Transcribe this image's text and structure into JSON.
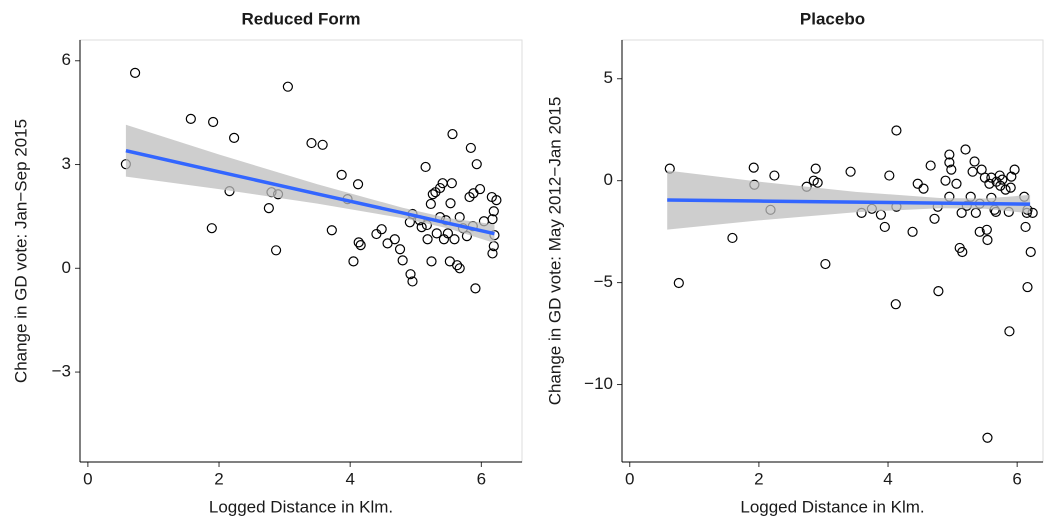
{
  "chart_data": [
    {
      "type": "scatter",
      "title": "Reduced Form",
      "x_label": "Logged Distance  in Klm.",
      "y_label": "Change in GD vote: Jan−Sep 2015",
      "xlim": [
        -0.12,
        6.62
      ],
      "ylim": [
        -5.6,
        6.6
      ],
      "xticks": [
        0,
        2,
        4,
        6
      ],
      "yticks": [
        {
          "value": -3,
          "label": "−3"
        },
        0,
        3,
        6
      ],
      "point_color": "#000000",
      "fit_color": "#3366ff",
      "band_color": "#bdbdbd",
      "points": {
        "x": [
          0.58,
          0.72,
          1.57,
          1.91,
          1.89,
          2.23,
          2.16,
          2.76,
          2.8,
          2.9,
          2.87,
          3.05,
          3.41,
          3.58,
          3.72,
          3.87,
          3.96,
          4.12,
          4.05,
          4.13,
          4.16,
          4.4,
          4.48,
          4.57,
          4.68,
          4.76,
          4.8,
          4.91,
          4.95,
          4.92,
          4.95,
          5.06,
          5.15,
          5.18,
          5.23,
          5.26,
          5.3,
          5.37,
          5.41,
          5.32,
          5.24,
          5.49,
          5.53,
          5.56,
          5.55,
          5.59,
          5.63,
          5.52,
          5.67,
          5.67,
          5.72,
          5.78,
          5.82,
          5.88,
          5.84,
          5.93,
          5.87,
          5.91,
          5.98,
          6.04,
          6.16,
          6.19,
          6.23,
          6.17,
          6.2,
          6.17,
          6.19,
          5.43,
          5.46,
          5.37,
          5.09,
          5.17
        ],
        "y": [
          3.01,
          5.65,
          4.32,
          4.23,
          1.16,
          3.77,
          2.23,
          1.74,
          2.2,
          2.14,
          0.52,
          5.25,
          3.62,
          3.57,
          1.1,
          2.7,
          2.0,
          2.43,
          0.2,
          0.75,
          0.67,
          0.99,
          1.13,
          0.72,
          0.84,
          0.55,
          0.23,
          1.33,
          1.57,
          -0.17,
          -0.38,
          1.39,
          2.93,
          0.84,
          1.86,
          2.14,
          2.2,
          2.32,
          2.46,
          1.01,
          0.2,
          1.01,
          1.88,
          3.88,
          2.46,
          0.84,
          0.09,
          0.2,
          0,
          1.48,
          1.16,
          0.93,
          2.06,
          2.17,
          3.48,
          3.01,
          1.22,
          -0.58,
          2.29,
          1.36,
          2.06,
          1.65,
          1.97,
          1.42,
          0.96,
          0.43,
          0.64,
          0.84,
          1.39,
          1.48,
          1.19,
          1.25
        ]
      },
      "fit": {
        "x": [
          0.58,
          2,
          3.5,
          4.8,
          5.5,
          6.2
        ],
        "y": [
          3.4,
          2.79,
          2.15,
          1.6,
          1.3,
          1.0
        ],
        "lower": [
          2.65,
          2.29,
          1.87,
          1.45,
          1.15,
          0.73
        ],
        "upper": [
          4.15,
          3.29,
          2.43,
          1.75,
          1.45,
          1.27
        ]
      }
    },
    {
      "type": "scatter",
      "title": "Placebo",
      "x_label": "Logged Distance  in Klm.",
      "y_label": "Change in GD vote: May 2012−Jan 2015",
      "xlim": [
        -0.12,
        6.4
      ],
      "ylim": [
        -13.8,
        6.9
      ],
      "xticks": [
        0,
        2,
        4,
        6
      ],
      "yticks": [
        {
          "value": -10,
          "label": "−10"
        },
        {
          "value": -5,
          "label": "−5"
        },
        0,
        5
      ],
      "point_color": "#000000",
      "fit_color": "#3366ff",
      "band_color": "#bdbdbd",
      "points": {
        "x": [
          0.62,
          0.76,
          1.92,
          1.93,
          2.24,
          2.18,
          1.59,
          2.74,
          2.85,
          2.88,
          2.91,
          3.03,
          3.42,
          3.59,
          3.75,
          3.89,
          3.95,
          4.02,
          4.13,
          4.13,
          4.12,
          4.38,
          4.46,
          4.55,
          4.66,
          4.72,
          4.77,
          4.78,
          4.89,
          4.95,
          4.95,
          4.98,
          4.95,
          5.06,
          5.11,
          5.15,
          5.14,
          5.2,
          5.22,
          5.28,
          5.31,
          5.34,
          5.36,
          5.42,
          5.45,
          5.5,
          5.53,
          5.42,
          5.54,
          5.57,
          5.6,
          5.6,
          5.65,
          5.68,
          5.73,
          5.74,
          5.77,
          5.82,
          5.67,
          5.54,
          5.88,
          5.96,
          5.91,
          5.9,
          6.11,
          6.16,
          6.13,
          6.16,
          6.21,
          6.24,
          6.15,
          5.87
        ],
        "y": [
          0.59,
          -5.02,
          0.64,
          -0.2,
          0.25,
          -1.43,
          -2.81,
          -0.3,
          0,
          0.59,
          -0.1,
          -4.09,
          0.44,
          -1.58,
          -1.38,
          -1.67,
          -2.27,
          0.25,
          2.46,
          -1.28,
          -6.06,
          -2.51,
          -0.15,
          -0.39,
          0.74,
          -1.87,
          -1.28,
          -5.42,
          0,
          1.28,
          0.89,
          0.54,
          -0.79,
          -0.15,
          -3.3,
          -3.5,
          -1.58,
          1.53,
          -1.23,
          -0.79,
          0.44,
          0.94,
          -1.58,
          -1.13,
          0.54,
          0.15,
          -2.41,
          -2.51,
          -2.91,
          -0.15,
          0.15,
          -0.84,
          -1.43,
          -0.05,
          0.25,
          -0.25,
          0.05,
          -0.44,
          -1.53,
          -12.61,
          -7.39,
          0.54,
          0.2,
          -0.34,
          -0.79,
          -1.43,
          -2.27,
          -5.22,
          -3.5,
          -1.58,
          -1.58,
          -1.53
        ]
      },
      "fit": {
        "x": [
          0.58,
          2,
          3.5,
          4.8,
          5.5,
          6.2
        ],
        "y": [
          -0.95,
          -1.0,
          -1.05,
          -1.1,
          -1.125,
          -1.15
        ],
        "lower": [
          -2.4,
          -1.95,
          -1.55,
          -1.35,
          -1.375,
          -1.6
        ],
        "upper": [
          0.5,
          -0.05,
          -0.55,
          -0.85,
          -0.875,
          -0.7
        ]
      }
    }
  ]
}
